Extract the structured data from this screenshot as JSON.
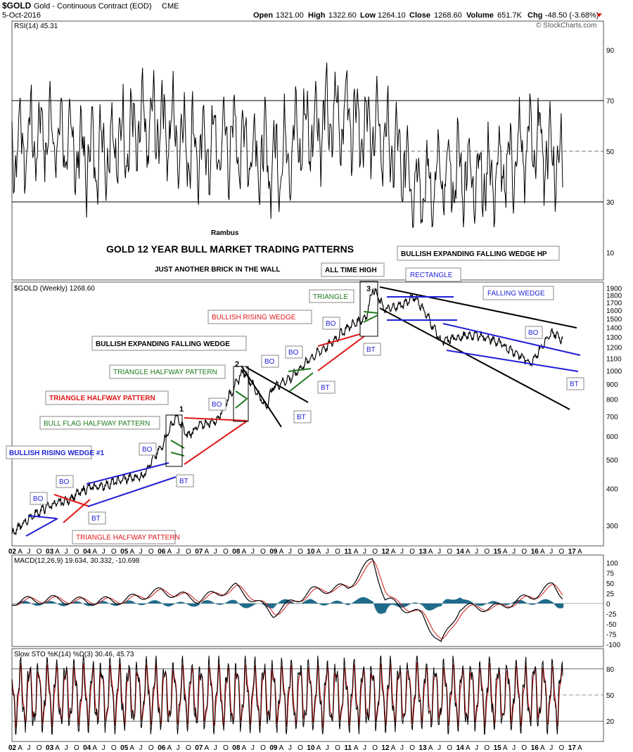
{
  "header": {
    "symbol": "$GOLD",
    "name": "Gold - Continuous Contract (EOD)",
    "exchange": "CME",
    "date": "5-Oct-2016",
    "open_label": "Open",
    "open": "1321.00",
    "high_label": "High",
    "high": "1322.60",
    "low_label": "Low",
    "low": "1264.10",
    "close_label": "Close",
    "close": "1268.60",
    "volume_label": "Volume",
    "volume": "651.7K",
    "chg_label": "Chg",
    "chg": "-48.50 (-3.68%)",
    "copyright": "© StockCharts.com"
  },
  "colors": {
    "blue": "#1f1fd6",
    "red": "#e01818",
    "green": "#1f7a1f",
    "black": "#000000",
    "rsi_fill": "#4d6b4d",
    "macd_hist": "#1f6b8a",
    "macd_signal": "#d01818"
  },
  "chart_data": [
    {
      "panel": "rsi",
      "type": "line",
      "title": "RSI(14) 45.31",
      "y_ticks": [
        10,
        30,
        50,
        70,
        90
      ],
      "ylim": [
        0,
        100
      ],
      "x": [
        "2002",
        "2003",
        "2004",
        "2005",
        "2006",
        "2007",
        "2008",
        "2009",
        "2010",
        "2011",
        "2012",
        "2013",
        "2014",
        "2015",
        "2016",
        "2016-10"
      ],
      "values": [
        52,
        58,
        48,
        55,
        62,
        50,
        55,
        45,
        60,
        65,
        55,
        35,
        42,
        40,
        55,
        45.31
      ]
    },
    {
      "panel": "price",
      "type": "line",
      "title": "$GOLD (Weekly) 1268.60",
      "y_scale": "log",
      "y_ticks": [
        300,
        400,
        500,
        600,
        700,
        800,
        900,
        1000,
        1100,
        1200,
        1300,
        1400,
        1500,
        1600,
        1700,
        1800,
        1900
      ],
      "ylim": [
        260,
        1960
      ],
      "x_years": [
        "02",
        "03",
        "04",
        "05",
        "06",
        "07",
        "08",
        "09",
        "10",
        "11",
        "12",
        "13",
        "14",
        "15",
        "16",
        "17"
      ],
      "x": [
        2002.0,
        2002.5,
        2003.0,
        2003.5,
        2004.0,
        2004.5,
        2005.0,
        2005.5,
        2006.0,
        2006.4,
        2006.7,
        2007.0,
        2007.5,
        2008.0,
        2008.2,
        2008.8,
        2009.0,
        2009.5,
        2010.0,
        2010.5,
        2011.0,
        2011.5,
        2011.67,
        2012.0,
        2012.5,
        2012.8,
        2013.3,
        2013.5,
        2014.0,
        2014.5,
        2015.0,
        2015.5,
        2015.9,
        2016.5,
        2016.77
      ],
      "values": [
        280,
        320,
        350,
        365,
        400,
        410,
        430,
        440,
        550,
        700,
        600,
        650,
        680,
        900,
        1000,
        750,
        880,
        950,
        1100,
        1220,
        1400,
        1520,
        1900,
        1600,
        1680,
        1780,
        1400,
        1250,
        1300,
        1320,
        1250,
        1150,
        1060,
        1350,
        1268.6
      ]
    },
    {
      "panel": "macd",
      "type": "line",
      "title": "MACD(12,26,9) 19.634, 30.332, -10.698",
      "y_ticks": [
        100,
        75,
        50,
        25,
        0,
        -25,
        -50,
        -75,
        -100
      ],
      "ylim": [
        -100,
        110
      ],
      "x": [
        2002,
        2003,
        2004,
        2005,
        2006,
        2007,
        2008,
        2009,
        2010,
        2011,
        2011.67,
        2012,
        2013,
        2013.5,
        2014,
        2015,
        2016,
        2016.5,
        2016.77
      ],
      "values": [
        5,
        10,
        5,
        8,
        30,
        10,
        40,
        -25,
        30,
        40,
        110,
        10,
        -30,
        -100,
        -10,
        -10,
        20,
        45,
        19.634
      ]
    },
    {
      "panel": "stochastic",
      "type": "line",
      "title": "Slow STO %K(14) %D(3) 30.46, 45.73",
      "y_ticks": [
        20,
        50,
        80
      ],
      "ylim": [
        0,
        100
      ],
      "x": [
        2002,
        2016.77
      ],
      "values": [
        50,
        30.46
      ]
    }
  ],
  "annotations": {
    "author": "Rambus",
    "main_title": "GOLD 12 YEAR BULL MARKET TRADING PATTERNS",
    "subtitle": "JUST ANOTHER BRICK IN THE WALL",
    "bullish_rising_wedge_1": "BULLISH RISING WEDGE #1",
    "bull_flag_halfway": "BULL FLAG HALFWAY PATTERN",
    "triangle_halfway_red": "TRIANGLE HALFWAY PATTERN",
    "triangle_halfway_green": "TRIANGLE HALFWAY PATTERN",
    "triangle_halfway_bottom": "TRIANGLE HALFWAY PATTERN",
    "bullish_expanding_falling_wedge": "BULLISH EXPANDING FALLING WEDGE",
    "bullish_rising_wedge": "BULLISH RISING WEDGE",
    "triangle": "TRIANGLE",
    "all_time_high": "ALL TIME HIGH",
    "rectangle": "RECTANGLE",
    "bullish_expanding_falling_wedge_hp": "BULLISH EXPANDING FALLING WEDGE HP",
    "falling_wedge": "FALLING WEDGE",
    "bo": "BO",
    "bt": "BT",
    "num1": "1",
    "num2": "2",
    "num3": "3"
  },
  "x_axis": {
    "labels": [
      "02",
      "A",
      "J",
      "O",
      "03",
      "A",
      "J",
      "O",
      "04",
      "A",
      "J",
      "O",
      "05",
      "A",
      "J",
      "O",
      "06",
      "A",
      "J",
      "O",
      "07",
      "A",
      "J",
      "O",
      "08",
      "A",
      "J",
      "O",
      "09",
      "A",
      "J",
      "O",
      "10",
      "A",
      "J",
      "O",
      "11",
      "A",
      "J",
      "O",
      "12",
      "A",
      "J",
      "O",
      "13",
      "A",
      "J",
      "O",
      "14",
      "A",
      "J",
      "O",
      "15",
      "A",
      "J",
      "O",
      "16",
      "A",
      "J",
      "O",
      "17",
      "A"
    ]
  }
}
